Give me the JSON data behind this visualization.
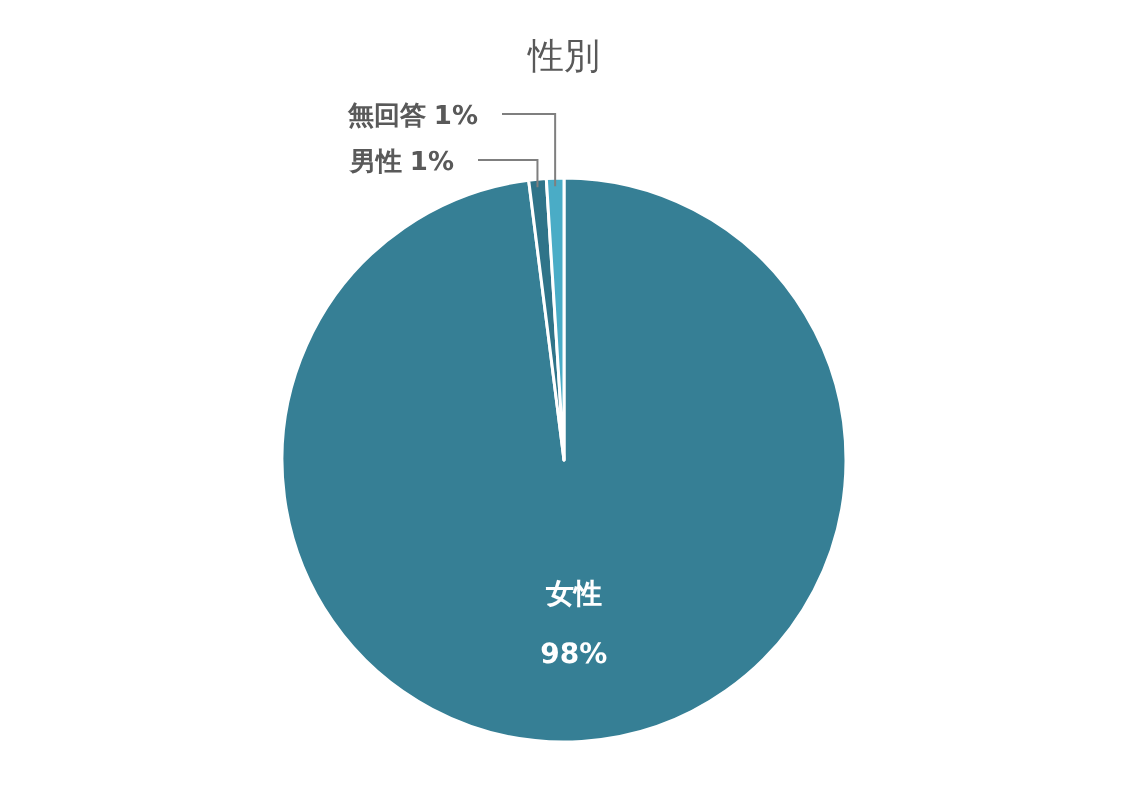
{
  "chart_data": {
    "type": "pie",
    "title": "性別",
    "categories": [
      "女性",
      "男性",
      "無回答"
    ],
    "values": [
      98,
      1,
      1
    ],
    "value_labels": [
      "98%",
      "1%",
      "1%"
    ],
    "colors": [
      "#367f95",
      "#2f7489",
      "#4aacc6"
    ]
  }
}
